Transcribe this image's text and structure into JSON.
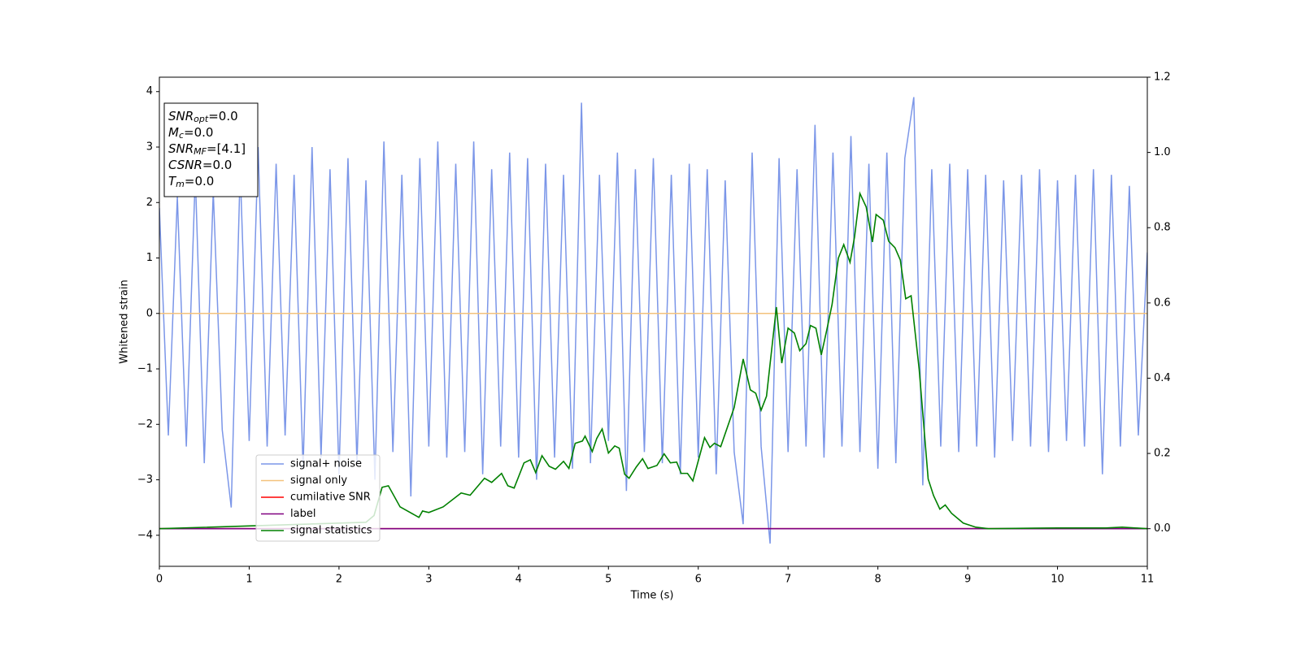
{
  "chart_data": {
    "type": "line",
    "xlabel": "Time (s)",
    "ylabel": "Whitened strain",
    "xlim": [
      0,
      11
    ],
    "xticks": [
      0,
      1,
      2,
      3,
      4,
      5,
      6,
      7,
      8,
      9,
      10,
      11
    ],
    "ylim": [
      -4.56,
      4.26
    ],
    "yticks": [
      -4,
      -3,
      -2,
      -1,
      0,
      1,
      2,
      3,
      4
    ],
    "y2lim": [
      -0.1,
      1.2
    ],
    "y2ticks": [
      {
        "value": 0,
        "label": "0.0"
      },
      {
        "value": 0.2,
        "label": "0.2"
      },
      {
        "value": 0.4,
        "label": "0.4"
      },
      {
        "value": 0.6,
        "label": "0.6"
      },
      {
        "value": 0.8,
        "label": "0.8"
      },
      {
        "value": 1.0,
        "label": "1.0"
      },
      {
        "value": 1.2,
        "label": "1.2"
      }
    ],
    "legend": "lower left",
    "grid": false,
    "annotation": [
      {
        "main": "SNR",
        "sub": "opt",
        "rest": "=0.0"
      },
      {
        "main": "M",
        "sub": "c",
        "rest": "=0.0"
      },
      {
        "main": "SNR",
        "sub": "MF",
        "rest": "=[4.1]"
      },
      {
        "main": "CSNR",
        "rest": "=0.0"
      },
      {
        "main": "T",
        "sub": "m",
        "rest": "=0.0"
      }
    ],
    "series": [
      {
        "name": "signal+ noise",
        "color": "#7b96e8",
        "x": [
          0,
          0.1,
          0.2,
          0.3,
          0.4,
          0.5,
          0.6,
          0.7,
          0.8,
          0.9,
          1.0,
          1.1,
          1.2,
          1.3,
          1.4,
          1.5,
          1.6,
          1.7,
          1.8,
          1.9,
          2.0,
          2.1,
          2.2,
          2.3,
          2.4,
          2.5,
          2.6,
          2.7,
          2.8,
          2.9,
          3.0,
          3.1,
          3.2,
          3.3,
          3.4,
          3.5,
          3.6,
          3.7,
          3.8,
          3.9,
          4.0,
          4.1,
          4.2,
          4.3,
          4.4,
          4.5,
          4.6,
          4.7,
          4.8,
          4.9,
          5.0,
          5.1,
          5.2,
          5.3,
          5.4,
          5.5,
          5.6,
          5.7,
          5.8,
          5.9,
          6.0,
          6.1,
          6.2,
          6.3,
          6.4,
          6.5,
          6.6,
          6.7,
          6.8,
          6.9,
          7.0,
          7.1,
          7.2,
          7.3,
          7.4,
          7.5,
          7.6,
          7.7,
          7.8,
          7.9,
          8.0,
          8.1,
          8.2,
          8.3,
          8.4,
          8.5,
          8.6,
          8.7,
          8.8,
          8.9,
          9.0,
          9.1,
          9.2,
          9.3,
          9.4,
          9.5,
          9.6,
          9.7,
          9.8,
          9.9,
          10.0,
          10.1,
          10.2,
          10.3,
          10.4,
          10.5,
          10.6,
          10.7,
          10.8,
          10.9,
          11.0
        ],
        "values": [
          1.9,
          -2.2,
          2.1,
          -2.4,
          2.5,
          -2.7,
          2.2,
          -2.1,
          -3.5,
          2.6,
          -2.3,
          3.0,
          -2.4,
          2.7,
          -2.2,
          2.5,
          -2.8,
          3.0,
          -2.6,
          2.6,
          -2.9,
          2.8,
          -2.7,
          2.4,
          -3.0,
          3.1,
          -2.5,
          2.5,
          -3.3,
          2.8,
          -2.4,
          3.1,
          -2.6,
          2.7,
          -2.5,
          3.1,
          -2.9,
          2.6,
          -2.4,
          2.9,
          -2.6,
          2.8,
          -3.0,
          2.7,
          -2.6,
          2.5,
          -2.8,
          3.8,
          -2.7,
          2.5,
          -2.3,
          2.9,
          -3.2,
          2.6,
          -2.5,
          2.8,
          -2.7,
          2.5,
          -2.9,
          2.7,
          -2.6,
          2.6,
          -2.9,
          2.4,
          -2.5,
          -3.8,
          2.9,
          -2.4,
          -4.15,
          2.8,
          -2.5,
          2.6,
          -2.4,
          3.4,
          -2.6,
          2.9,
          -2.4,
          3.2,
          -2.5,
          2.7,
          -2.8,
          2.9,
          -2.7,
          2.8,
          3.9,
          -3.1,
          2.6,
          -2.4,
          2.7,
          -2.5,
          2.6,
          -2.4,
          2.5,
          -2.6,
          2.4,
          -2.3,
          2.5,
          -2.4,
          2.6,
          -2.5,
          2.4,
          -2.3,
          2.5,
          -2.4,
          2.6,
          -2.9,
          2.5,
          -2.4,
          2.3,
          -2.2,
          1.1
        ]
      },
      {
        "name": "signal only",
        "color": "#f3c27c",
        "x": [
          0,
          11
        ],
        "values": [
          0,
          0
        ]
      },
      {
        "name": "cumilative SNR",
        "color": "#ff0000",
        "axis": "y2",
        "x": [
          0,
          11
        ],
        "values": [
          0,
          0
        ]
      },
      {
        "name": "label",
        "color": "#800080",
        "axis": "y2",
        "x": [
          0,
          11
        ],
        "values": [
          0,
          0
        ]
      },
      {
        "name": "signal statistics",
        "color": "#008000",
        "axis": "y2",
        "x": [
          0,
          2.3,
          2.39,
          2.48,
          2.55,
          2.68,
          2.89,
          2.93,
          3.0,
          3.16,
          3.36,
          3.46,
          3.62,
          3.7,
          3.81,
          3.88,
          3.95,
          4.06,
          4.13,
          4.19,
          4.26,
          4.34,
          4.41,
          4.5,
          4.56,
          4.63,
          4.71,
          4.74,
          4.82,
          4.87,
          4.93,
          5.0,
          5.07,
          5.12,
          5.18,
          5.23,
          5.31,
          5.38,
          5.44,
          5.54,
          5.62,
          5.69,
          5.76,
          5.81,
          5.88,
          5.94,
          6.07,
          6.13,
          6.18,
          6.25,
          6.4,
          6.5,
          6.58,
          6.64,
          6.7,
          6.76,
          6.87,
          6.93,
          7.0,
          7.07,
          7.13,
          7.2,
          7.25,
          7.31,
          7.37,
          7.43,
          7.49,
          7.56,
          7.62,
          7.69,
          7.74,
          7.8,
          7.87,
          7.94,
          7.98,
          8.06,
          8.12,
          8.19,
          8.25,
          8.31,
          8.37,
          8.46,
          8.56,
          8.62,
          8.69,
          8.75,
          8.82,
          8.95,
          9.09,
          9.23,
          10.0,
          10.54,
          10.72,
          11
        ],
        "values": [
          0,
          0.017,
          0.035,
          0.11,
          0.114,
          0.058,
          0.03,
          0.047,
          0.043,
          0.058,
          0.095,
          0.089,
          0.134,
          0.123,
          0.147,
          0.114,
          0.108,
          0.175,
          0.183,
          0.149,
          0.194,
          0.166,
          0.158,
          0.179,
          0.16,
          0.227,
          0.233,
          0.246,
          0.205,
          0.24,
          0.265,
          0.201,
          0.22,
          0.214,
          0.145,
          0.134,
          0.164,
          0.186,
          0.16,
          0.168,
          0.199,
          0.175,
          0.177,
          0.147,
          0.147,
          0.127,
          0.242,
          0.216,
          0.227,
          0.218,
          0.322,
          0.451,
          0.369,
          0.36,
          0.315,
          0.352,
          0.589,
          0.44,
          0.533,
          0.52,
          0.473,
          0.492,
          0.54,
          0.533,
          0.462,
          0.527,
          0.596,
          0.719,
          0.755,
          0.708,
          0.775,
          0.891,
          0.855,
          0.762,
          0.835,
          0.82,
          0.764,
          0.747,
          0.714,
          0.611,
          0.619,
          0.423,
          0.132,
          0.088,
          0.052,
          0.063,
          0.041,
          0.015,
          0.004,
          0,
          0.002,
          0.002,
          0.004,
          0
        ]
      }
    ]
  }
}
